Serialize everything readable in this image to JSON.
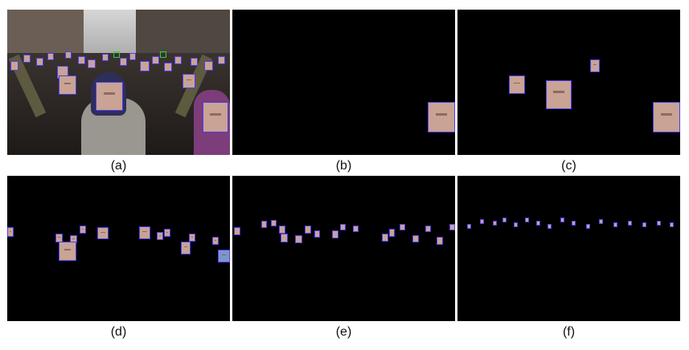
{
  "captions": [
    "(a)",
    "(b)",
    "(c)",
    "(d)",
    "(e)",
    "(f)"
  ],
  "colors": {
    "background": "#000000",
    "face_box": "#4b3df0",
    "face_box_green": "#2bd04a"
  }
}
